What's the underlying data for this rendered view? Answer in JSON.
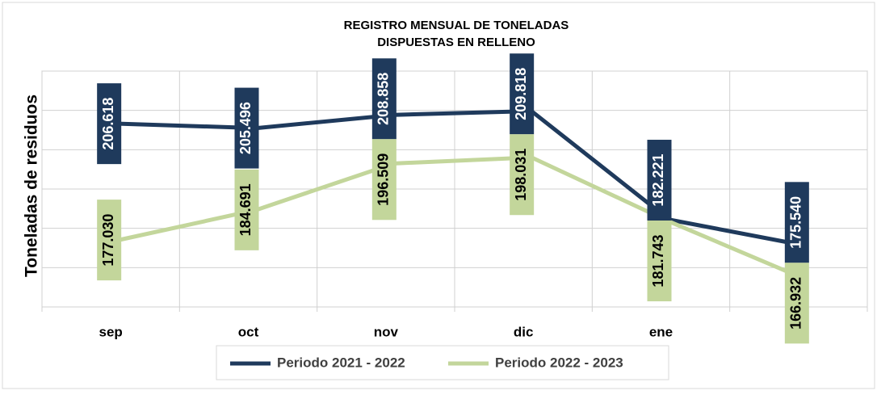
{
  "chart_data": {
    "type": "line",
    "title": "REGISTRO MENSUAL DE TONELADAS",
    "subtitle": "DISPUESTAS EN RELLENO",
    "y_label": "Toneladas de residuos",
    "categories": [
      "sep",
      "oct",
      "nov",
      "dic",
      "ene",
      "feb"
    ],
    "series": [
      {
        "name": "Periodo 2021 - 2022",
        "color": "#1f3a5c",
        "values": [
          206.618,
          205.496,
          208.858,
          209.818,
          182.221,
          175.54
        ],
        "value_labels": [
          "206.618",
          "205.496",
          "208.858",
          "209.818",
          "182.221",
          "175.540"
        ]
      },
      {
        "name": "Periodo 2022 - 2023",
        "color": "#c3d69b",
        "values": [
          177.03,
          184.691,
          196.509,
          198.031,
          181.743,
          166.932
        ],
        "value_labels": [
          "177.030",
          "184.691",
          "196.509",
          "198.031",
          "181.743",
          "166.932"
        ]
      }
    ],
    "ylim": [
      160,
      220
    ],
    "yticks": [
      160,
      170,
      180,
      190,
      200,
      210,
      220
    ],
    "grid": true,
    "legend": "bottom"
  }
}
